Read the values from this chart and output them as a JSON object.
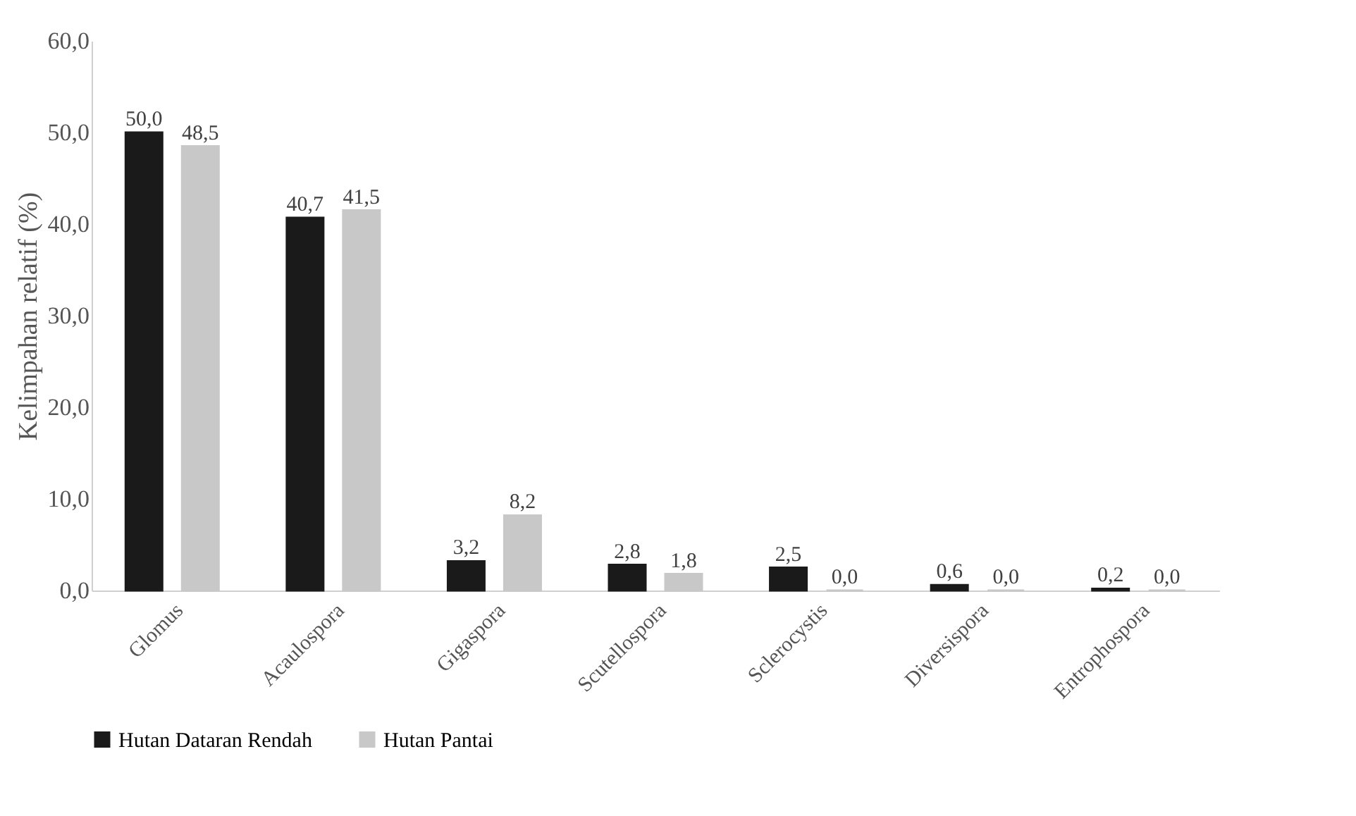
{
  "chart_data": {
    "type": "bar",
    "ylabel": "Kelimpahan relatif (%)",
    "categories": [
      "Glomus",
      "Acaulospora",
      "Gigaspora",
      "Scutellospora",
      "Sclerocystis",
      "Diversispora",
      "Entrophospora"
    ],
    "series": [
      {
        "name": "Hutan Dataran Rendah",
        "color": "#1a1a1a",
        "values": [
          50.0,
          40.7,
          3.2,
          2.8,
          2.5,
          0.6,
          0.2
        ],
        "value_labels": [
          "50,0",
          "40,7",
          "3,2",
          "2,8",
          "2,5",
          "0,6",
          "0,2"
        ]
      },
      {
        "name": "Hutan Pantai",
        "color": "#c8c8c8",
        "values": [
          48.5,
          41.5,
          8.2,
          1.8,
          0.0,
          0.0,
          0.0
        ],
        "value_labels": [
          "48,5",
          "41,5",
          "8,2",
          "1,8",
          "0,0",
          "0,0",
          "0,0"
        ]
      }
    ],
    "ylim": [
      0,
      60
    ],
    "yticks": [
      {
        "value": 0,
        "label": "0,0"
      },
      {
        "value": 10,
        "label": "10,0"
      },
      {
        "value": 20,
        "label": "20,0"
      },
      {
        "value": 30,
        "label": "30,0"
      },
      {
        "value": 40,
        "label": "40,0"
      },
      {
        "value": 50,
        "label": "50,0"
      },
      {
        "value": 60,
        "label": "60,0"
      }
    ],
    "grid": false,
    "legend": "bottom"
  }
}
